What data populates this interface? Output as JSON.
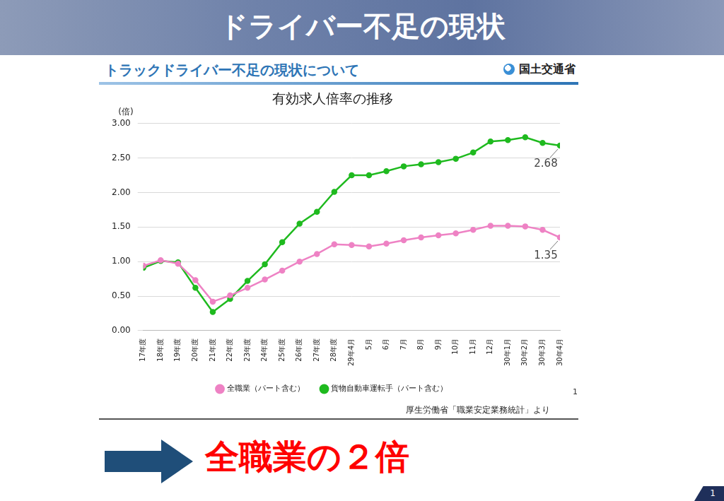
{
  "slide": {
    "title": "ドライバー不足の現状",
    "conclusion": "全職業の２倍",
    "page_number": "1"
  },
  "panel": {
    "header": "トラックドライバー不足の現状について",
    "ministry": "国土交通省",
    "source": "厚生労働省「職業安定業務統計」より",
    "page_number": "1"
  },
  "chart_data": {
    "type": "line",
    "title": "有効求人倍率の推移",
    "ylabel": "(倍)",
    "categories": [
      "17年度",
      "18年度",
      "19年度",
      "20年度",
      "21年度",
      "22年度",
      "23年度",
      "24年度",
      "25年度",
      "26年度",
      "27年度",
      "28年度",
      "29年4月",
      "5月",
      "6月",
      "7月",
      "8月",
      "9月",
      "10月",
      "11月",
      "12月",
      "30年1月",
      "30年2月",
      "30年3月",
      "30年4月"
    ],
    "series": [
      {
        "name": "全職業（パート含む）",
        "color": "#ee82c4",
        "marker": "circle",
        "values": [
          0.94,
          1.02,
          0.97,
          0.73,
          0.42,
          0.51,
          0.62,
          0.74,
          0.87,
          1.0,
          1.11,
          1.25,
          1.24,
          1.22,
          1.26,
          1.31,
          1.35,
          1.38,
          1.41,
          1.46,
          1.52,
          1.52,
          1.51,
          1.46,
          1.35
        ]
      },
      {
        "name": "貨物自動車運転手（パート含む）",
        "color": "#1fba1f",
        "marker": "circle",
        "values": [
          0.91,
          1.01,
          0.99,
          0.62,
          0.27,
          0.46,
          0.72,
          0.96,
          1.28,
          1.55,
          1.72,
          2.01,
          2.25,
          2.25,
          2.31,
          2.38,
          2.41,
          2.44,
          2.49,
          2.58,
          2.74,
          2.76,
          2.8,
          2.72,
          2.68
        ]
      }
    ],
    "annotations": [
      {
        "series": "貨物自動車運転手（パート含む）",
        "category": "30年4月",
        "text": "2.68"
      },
      {
        "series": "全職業（パート含む）",
        "category": "30年4月",
        "text": "1.35"
      }
    ],
    "ylim": [
      0,
      3
    ],
    "yticks": [
      {
        "value": 0,
        "label": "0.00"
      },
      {
        "value": 0.5,
        "label": "0.50"
      },
      {
        "value": 1,
        "label": "1.00"
      },
      {
        "value": 1.5,
        "label": "1.50"
      },
      {
        "value": 2,
        "label": "2.00"
      },
      {
        "value": 2.5,
        "label": "2.50"
      },
      {
        "value": 3,
        "label": "3.00"
      }
    ],
    "grid": true,
    "legend": "bottom"
  }
}
